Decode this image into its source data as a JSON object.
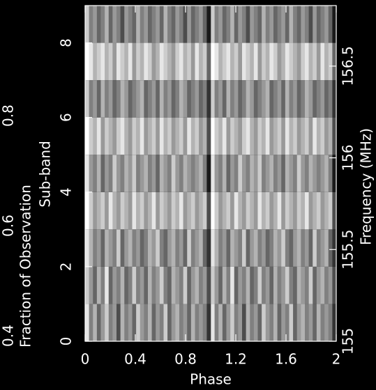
{
  "chart_data": {
    "type": "heatmap",
    "x_label": "Phase",
    "y_label": "Sub-band",
    "y_outer_label": "Fraction of Observation",
    "y2_label": "Frequency (MHz)",
    "xlim": [
      0,
      2
    ],
    "xticks": [
      0,
      0.4,
      0.8,
      1.2,
      1.6,
      2
    ],
    "ylim": [
      0,
      9
    ],
    "yticks": [
      0,
      2,
      4,
      6,
      8
    ],
    "y_outer_lim": [
      0.39,
      1.0
    ],
    "y_outer_ticks": [
      0.4,
      0.6,
      0.8
    ],
    "y2lim": [
      155,
      156.83
    ],
    "y2ticks": [
      155,
      155.5,
      156,
      156.5
    ],
    "periods": 2,
    "zlim": [
      0,
      1
    ],
    "colormap": "gray",
    "values": [
      [
        0.9,
        0.5,
        0.7,
        0.4,
        0.6,
        0.8,
        0.5,
        0.6,
        0.3,
        0.7,
        0.5,
        0.6,
        0.4,
        0.8,
        0.6,
        0.5,
        0.7,
        0.4,
        0.6,
        0.5,
        0.8,
        0.4,
        0.6,
        0.7,
        0.5,
        0.6,
        0.4,
        0.7,
        0.5,
        0.6,
        0.5,
        0.2
      ],
      [
        0.8,
        0.6,
        0.4,
        0.7,
        0.5,
        0.9,
        0.4,
        0.6,
        0.5,
        0.7,
        0.4,
        0.5,
        0.8,
        0.5,
        0.6,
        0.4,
        0.7,
        0.5,
        0.6,
        0.8,
        0.5,
        0.4,
        0.7,
        0.6,
        0.5,
        0.8,
        0.4,
        0.6,
        0.7,
        0.5,
        0.6,
        0.3
      ],
      [
        0.9,
        0.7,
        0.5,
        0.6,
        0.4,
        0.7,
        0.6,
        0.5,
        0.8,
        0.4,
        0.6,
        0.7,
        0.5,
        0.6,
        0.4,
        0.5,
        0.7,
        0.6,
        0.8,
        0.5,
        0.4,
        0.6,
        0.7,
        0.5,
        0.6,
        0.4,
        0.8,
        0.5,
        0.6,
        0.7,
        0.4,
        0.2
      ],
      [
        1.0,
        0.8,
        0.6,
        0.7,
        0.8,
        0.6,
        0.9,
        0.7,
        0.6,
        0.8,
        0.7,
        0.6,
        0.9,
        0.7,
        0.8,
        0.6,
        0.7,
        0.9,
        0.6,
        0.8,
        0.7,
        0.6,
        0.8,
        0.7,
        0.9,
        0.6,
        0.7,
        0.8,
        0.6,
        0.7,
        0.8,
        0.3
      ],
      [
        0.9,
        0.6,
        0.5,
        0.7,
        0.4,
        0.6,
        0.5,
        0.8,
        0.6,
        0.5,
        0.7,
        0.6,
        0.8,
        0.5,
        0.6,
        0.7,
        0.5,
        0.6,
        0.4,
        0.7,
        0.6,
        0.5,
        0.8,
        0.6,
        0.5,
        0.7,
        0.6,
        0.5,
        0.6,
        0.7,
        0.5,
        0.1
      ],
      [
        1.0,
        0.8,
        0.7,
        0.9,
        0.6,
        0.8,
        0.7,
        0.6,
        0.8,
        0.9,
        0.7,
        0.6,
        0.8,
        0.7,
        0.9,
        0.6,
        0.7,
        0.8,
        0.6,
        0.9,
        0.7,
        0.8,
        0.6,
        0.7,
        0.8,
        0.6,
        0.9,
        0.7,
        0.8,
        0.6,
        0.7,
        0.3
      ],
      [
        0.8,
        0.5,
        0.6,
        0.4,
        0.7,
        0.5,
        0.6,
        0.4,
        0.5,
        0.7,
        0.6,
        0.4,
        0.5,
        0.6,
        0.7,
        0.4,
        0.5,
        0.6,
        0.4,
        0.7,
        0.5,
        0.6,
        0.4,
        0.5,
        0.7,
        0.6,
        0.4,
        0.5,
        0.6,
        0.4,
        0.5,
        0.2
      ],
      [
        1.0,
        0.9,
        0.7,
        0.8,
        0.9,
        0.7,
        0.8,
        0.6,
        0.9,
        0.8,
        0.7,
        0.9,
        0.6,
        0.8,
        0.7,
        0.9,
        0.8,
        0.6,
        0.7,
        0.9,
        0.8,
        0.7,
        0.6,
        0.8,
        0.9,
        0.7,
        0.8,
        0.6,
        0.9,
        0.7,
        0.8,
        0.4
      ],
      [
        0.8,
        0.5,
        0.6,
        0.4,
        0.5,
        0.7,
        0.4,
        0.6,
        0.5,
        0.3,
        0.6,
        0.5,
        0.4,
        0.7,
        0.5,
        0.6,
        0.4,
        0.5,
        0.6,
        0.4,
        0.7,
        0.5,
        0.4,
        0.6,
        0.5,
        0.3,
        0.6,
        0.4,
        0.5,
        0.6,
        0.4,
        0.1
      ]
    ]
  }
}
